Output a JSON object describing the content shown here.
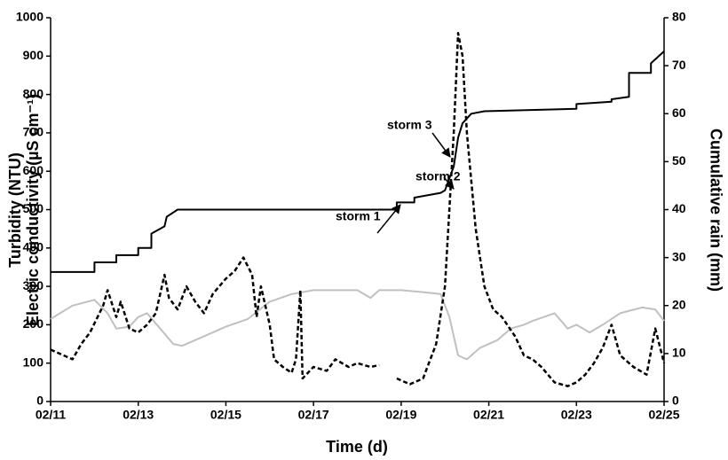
{
  "chart_data": {
    "type": "line",
    "x_label": "Time (d)",
    "y_label": [
      "Turbidity (NTU)",
      "Electric conductivity (µS cm⁻¹)"
    ],
    "y2_label": "Cumulative rain (mm)",
    "xlim": [
      11,
      25
    ],
    "xticks": [
      {
        "value": 11,
        "label": "02/11"
      },
      {
        "value": 13,
        "label": "02/13"
      },
      {
        "value": 15,
        "label": "02/15"
      },
      {
        "value": 17,
        "label": "02/17"
      },
      {
        "value": 19,
        "label": "02/19"
      },
      {
        "value": 21,
        "label": "02/21"
      },
      {
        "value": 23,
        "label": "02/23"
      },
      {
        "value": 25,
        "label": "02/25"
      }
    ],
    "ylim": [
      0,
      1000
    ],
    "yticks": [
      0,
      100,
      200,
      300,
      400,
      500,
      600,
      700,
      800,
      900,
      1000
    ],
    "y2lim": [
      0,
      80
    ],
    "y2ticks": [
      0,
      10,
      20,
      30,
      40,
      50,
      60,
      70,
      80
    ],
    "grid": false,
    "annotations": [
      "storm 1",
      "storm 2",
      "storm 3"
    ],
    "series": [
      {
        "color": "#c0c0c0",
        "linestyle": "solid",
        "x": [
          11.0,
          11.5,
          12.0,
          12.3,
          12.5,
          12.8,
          13.0,
          13.2,
          13.5,
          13.8,
          14.0,
          14.5,
          15.0,
          15.5,
          16.0,
          16.5,
          17.0,
          18.0,
          18.3,
          18.5,
          19.0,
          19.5,
          19.9,
          20.1,
          20.3,
          20.5,
          20.8,
          21.2,
          21.5,
          21.8,
          22.0,
          22.5,
          22.8,
          23.0,
          23.3,
          23.6,
          24.0,
          24.5,
          24.8,
          25.0
        ],
        "values": [
          215,
          250,
          265,
          230,
          190,
          195,
          220,
          230,
          190,
          150,
          145,
          170,
          195,
          215,
          260,
          280,
          290,
          290,
          270,
          290,
          290,
          285,
          280,
          220,
          120,
          110,
          140,
          160,
          190,
          200,
          210,
          230,
          190,
          200,
          180,
          200,
          230,
          245,
          240,
          210
        ]
      },
      {
        "color": "#000000",
        "linestyle": "dashed",
        "x": [
          11.0,
          11.3,
          11.5,
          11.7,
          11.9,
          12.2,
          12.3,
          12.5,
          12.6,
          12.8,
          13.0,
          13.2,
          13.4,
          13.6,
          13.7,
          13.9,
          14.1,
          14.3,
          14.5,
          14.7,
          15.0,
          15.2,
          15.4,
          15.6,
          15.7,
          15.8,
          16.0,
          16.1,
          16.3,
          16.5,
          16.6,
          16.7,
          16.75,
          17.0,
          17.3,
          17.5,
          17.8,
          18.0,
          18.3,
          18.5,
          18.7,
          18.9,
          19.2,
          19.5,
          19.8,
          20.0,
          20.2,
          20.3,
          20.4,
          20.5,
          20.7,
          20.9,
          21.1,
          21.3,
          21.6,
          21.8,
          22.0,
          22.2,
          22.5,
          22.8,
          23.0,
          23.2,
          23.4,
          23.6,
          23.8,
          24.0,
          24.3,
          24.6,
          24.8,
          25.0
        ],
        "values": [
          135,
          120,
          110,
          150,
          180,
          250,
          290,
          220,
          260,
          190,
          180,
          200,
          230,
          330,
          270,
          240,
          300,
          260,
          230,
          280,
          320,
          340,
          375,
          330,
          220,
          300,
          200,
          110,
          90,
          75,
          110,
          290,
          60,
          90,
          80,
          110,
          90,
          100,
          90,
          95,
          null,
          60,
          45,
          60,
          150,
          300,
          700,
          960,
          900,
          700,
          450,
          300,
          240,
          220,
          170,
          120,
          110,
          90,
          50,
          40,
          50,
          70,
          100,
          140,
          200,
          120,
          90,
          70,
          190,
          100
        ]
      },
      {
        "color": "#000000",
        "linestyle": "solid",
        "axis": "y2",
        "x": [
          11.0,
          12.0,
          12.0,
          12.5,
          12.5,
          13.0,
          13.0,
          13.3,
          13.3,
          13.6,
          13.65,
          13.9,
          18.9,
          18.9,
          19.3,
          19.3,
          19.9,
          20.0,
          20.2,
          20.3,
          20.4,
          20.6,
          20.9,
          23.0,
          23.0,
          23.8,
          23.8,
          24.2,
          24.2,
          24.7,
          24.7,
          25.0
        ],
        "values": [
          27,
          27,
          29,
          29,
          30.5,
          30.5,
          32,
          32,
          35,
          36.5,
          38.5,
          40,
          40,
          41.5,
          41.5,
          42.5,
          43.5,
          44,
          49,
          55,
          58,
          60,
          60.5,
          61,
          62,
          62.5,
          63,
          63.5,
          68.5,
          68.5,
          70.5,
          73
        ]
      }
    ]
  }
}
